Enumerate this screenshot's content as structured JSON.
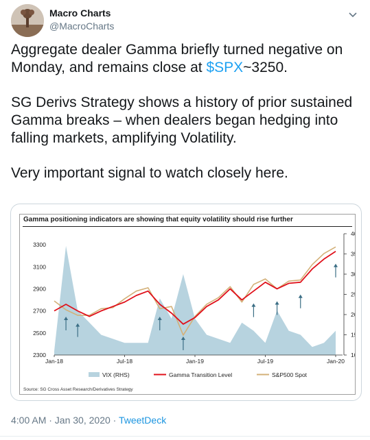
{
  "author": {
    "name": "Macro Charts",
    "handle": "@MacroCharts"
  },
  "tweet": {
    "p1_before": "Aggregate dealer Gamma briefly turned negative on Monday, and remains close at ",
    "p1_link": "$SPX",
    "p1_after": "~3250.",
    "p2": "SG Derivs Strategy shows a history of prior sustained Gamma breaks – when dealers began hedging into falling markets, amplifying Volatility.",
    "p3": "Very important signal to watch closely here."
  },
  "footer": {
    "time": "4:00 AM · Jan 30, 2020 · ",
    "app": "TweetDeck"
  },
  "colors": {
    "vix": "#b7d3df",
    "gamma": "#e0101a",
    "spx": "#d3b078",
    "arrow": "#3b6e85",
    "link": "#1da1f2"
  },
  "chart_data": {
    "type": "line",
    "title": "Gamma positioning indicators are showing that equity volatility should rise further",
    "source": "Source: SG Cross Asset Research/Derivatives Strategy",
    "x_ticks": [
      "Jan-18",
      "Jul-18",
      "Jan-19",
      "Jul-19",
      "Jan-20"
    ],
    "y_left": {
      "ticks": [
        2300,
        2500,
        2700,
        2900,
        3100,
        3300
      ],
      "range": [
        2300,
        3400
      ]
    },
    "y_right": {
      "ticks": [
        10,
        15,
        20,
        25,
        30,
        35,
        40
      ],
      "range": [
        10,
        40
      ]
    },
    "legend": [
      "VIX (RHS)",
      "Gamma Transition Level",
      "S&P500 Spot"
    ],
    "months": [
      "2018-01",
      "2018-02",
      "2018-03",
      "2018-04",
      "2018-05",
      "2018-06",
      "2018-07",
      "2018-08",
      "2018-09",
      "2018-10",
      "2018-11",
      "2018-12",
      "2019-01",
      "2019-02",
      "2019-03",
      "2019-04",
      "2019-05",
      "2019-06",
      "2019-07",
      "2019-08",
      "2019-09",
      "2019-10",
      "2019-11",
      "2019-12",
      "2020-01"
    ],
    "series": [
      {
        "name": "S&P500 Spot",
        "values": [
          2790,
          2710,
          2660,
          2660,
          2720,
          2730,
          2810,
          2880,
          2910,
          2720,
          2740,
          2480,
          2650,
          2760,
          2820,
          2920,
          2780,
          2940,
          2990,
          2900,
          2970,
          2980,
          3120,
          3220,
          3280
        ]
      },
      {
        "name": "Gamma Transition Level",
        "values": [
          2700,
          2760,
          2700,
          2650,
          2700,
          2740,
          2780,
          2840,
          2880,
          2760,
          2680,
          2580,
          2640,
          2740,
          2800,
          2900,
          2800,
          2880,
          2960,
          2900,
          2950,
          2960,
          3080,
          3170,
          3240
        ]
      },
      {
        "name": "VIX (RHS)",
        "values": [
          11,
          37,
          21,
          18,
          15,
          14,
          13,
          13,
          13,
          24,
          19,
          30,
          19,
          15,
          14,
          13,
          18,
          16,
          13,
          21,
          16,
          15,
          12,
          13,
          16
        ]
      }
    ],
    "arrows": [
      "2018-02",
      "2018-03",
      "2018-10",
      "2018-12",
      "2019-06",
      "2019-08",
      "2019-10",
      "2020-01"
    ]
  }
}
